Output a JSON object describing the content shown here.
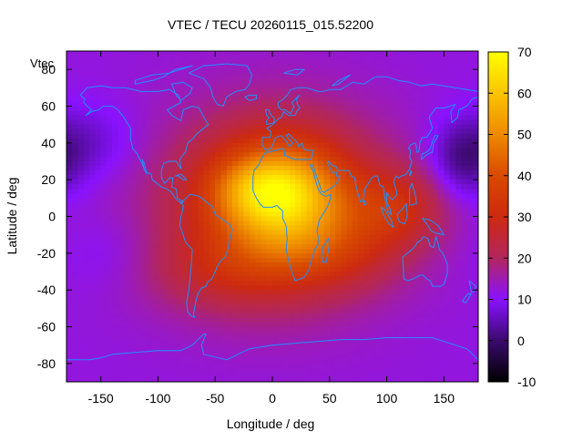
{
  "chart_data": {
    "type": "heatmap",
    "title": "VTEC / TECU 20260115_015.52200",
    "xlabel": "Longitude / deg",
    "ylabel": "Latitude / deg",
    "xlim": [
      -180,
      180
    ],
    "ylim": [
      -90,
      90
    ],
    "x_ticks": [
      -150,
      -100,
      -50,
      0,
      50,
      100,
      150
    ],
    "y_ticks": [
      80,
      60,
      40,
      20,
      0,
      -20,
      -40,
      -60,
      -80
    ],
    "colorbar": {
      "range": [
        -10,
        70
      ],
      "ticks": [
        70,
        60,
        50,
        40,
        30,
        20,
        10,
        0,
        -10
      ],
      "palette": [
        {
          "value": -10,
          "color": "#000000"
        },
        {
          "value": 0,
          "color": "#3b0a6e"
        },
        {
          "value": 10,
          "color": "#8a12ff"
        },
        {
          "value": 20,
          "color": "#b2265e"
        },
        {
          "value": 30,
          "color": "#cc2a10"
        },
        {
          "value": 40,
          "color": "#d84a00"
        },
        {
          "value": 50,
          "color": "#ee8a00"
        },
        {
          "value": 60,
          "color": "#fbc400"
        },
        {
          "value": 70,
          "color": "#ffff00"
        }
      ]
    },
    "background_level": 12,
    "anomalies": [
      {
        "lon": 0,
        "lat": 5,
        "sigma_lon": 70,
        "sigma_lat": 36,
        "amp": 20
      },
      {
        "lon": 10,
        "lat": 10,
        "sigma_lon": 40,
        "sigma_lat": 22,
        "amp": 30
      },
      {
        "lon": -10,
        "lat": 15,
        "sigma_lon": 30,
        "sigma_lat": 12,
        "amp": 12
      },
      {
        "lon": 110,
        "lat": 5,
        "sigma_lon": 30,
        "sigma_lat": 15,
        "amp": 14
      },
      {
        "lon": 60,
        "lat": -20,
        "sigma_lon": 40,
        "sigma_lat": 15,
        "amp": 8
      },
      {
        "lon": -40,
        "lat": -30,
        "sigma_lon": 50,
        "sigma_lat": 15,
        "amp": 8
      },
      {
        "lon": 165,
        "lat": 30,
        "sigma_lon": 20,
        "sigma_lat": 15,
        "amp": -10
      },
      {
        "lon": -160,
        "lat": 40,
        "sigma_lon": 30,
        "sigma_lat": 15,
        "amp": -6
      },
      {
        "lon": -140,
        "lat": -20,
        "sigma_lon": 30,
        "sigma_lat": 15,
        "amp": -3
      }
    ],
    "overlay": "coastlines",
    "overlay_color": "#1e90ff",
    "legend": "Vtec",
    "legend_position": "top-left"
  }
}
